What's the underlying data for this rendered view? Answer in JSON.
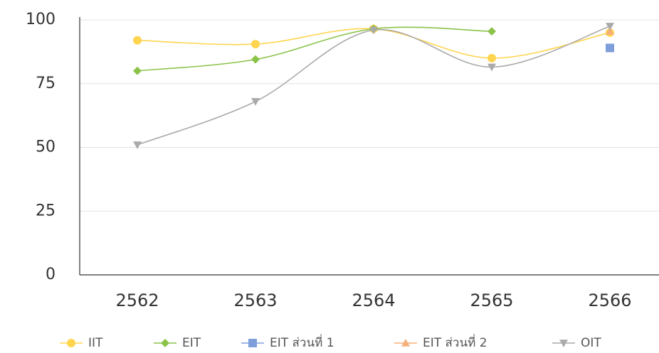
{
  "chart_data": {
    "type": "line",
    "categories": [
      "2562",
      "2563",
      "2564",
      "2565",
      "2566"
    ],
    "series": [
      {
        "name": "IIT",
        "color": "#ffd54f",
        "marker": "circle",
        "values": [
          92,
          90.5,
          96.5,
          85,
          95
        ]
      },
      {
        "name": "EIT",
        "color": "#8bc34a",
        "marker": "diamond",
        "values": [
          80,
          84.5,
          96.5,
          95.5,
          null
        ]
      },
      {
        "name": "EIT ส่วนที่ 1",
        "color": "#7f9fdb",
        "marker": "square",
        "values": [
          null,
          null,
          null,
          null,
          89
        ]
      },
      {
        "name": "EIT ส่วนที่ 2",
        "color": "#f5b07a",
        "marker": "triangle-up",
        "values": [
          null,
          null,
          null,
          null,
          95.5
        ]
      },
      {
        "name": "OIT",
        "color": "#aaaaaa",
        "marker": "triangle-down",
        "values": [
          51,
          68,
          96,
          81.5,
          97.5
        ]
      }
    ],
    "ylim": [
      0,
      100
    ],
    "yticks": [
      0,
      25,
      50,
      75,
      100
    ],
    "grid": true,
    "legend": "bottom",
    "smooth": true
  }
}
